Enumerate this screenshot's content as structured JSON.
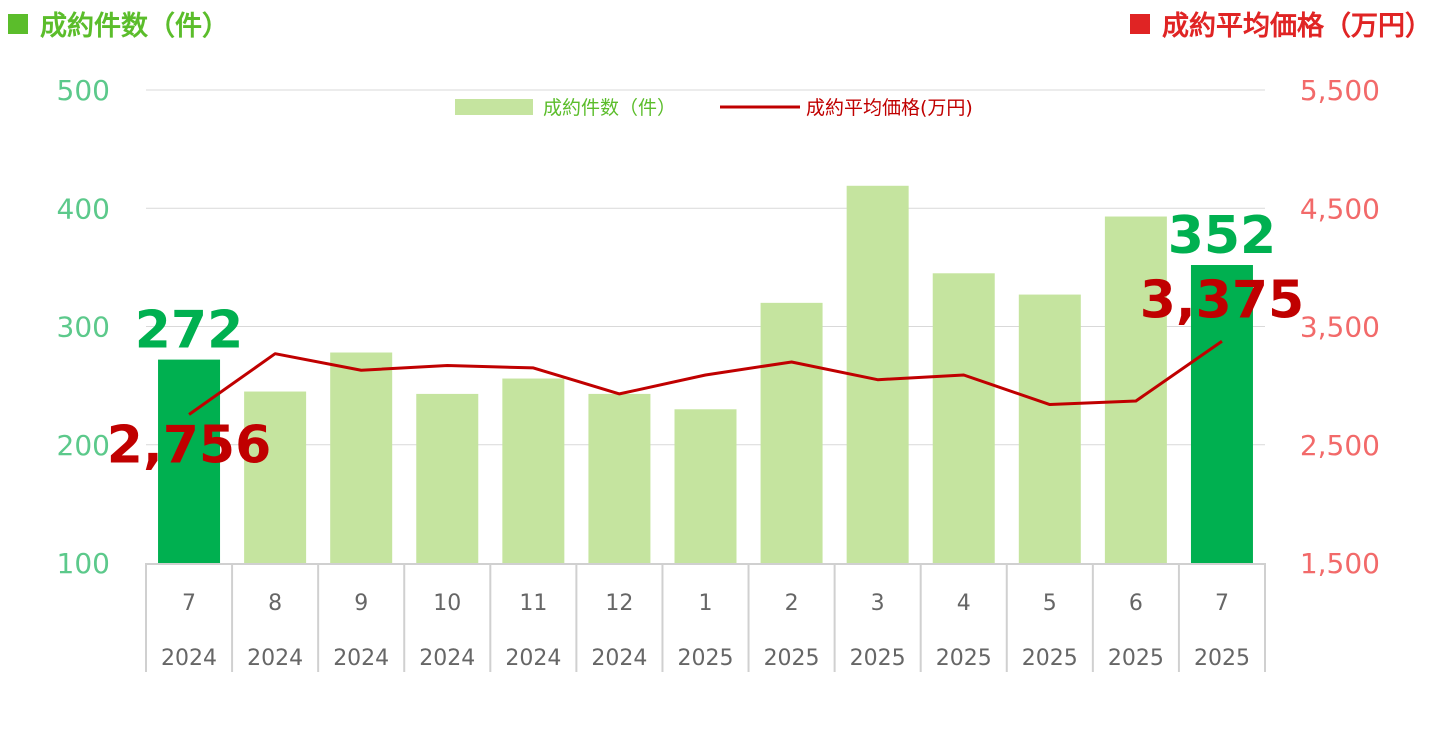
{
  "header": {
    "left_title": "成約件数（件）",
    "right_title": "成約平均価格（万円）"
  },
  "colors": {
    "bar": "#c5e49f",
    "bar_highlight": "#00b050",
    "line": "#c00000",
    "left_axis": "#5cc98b",
    "right_axis": "#f26a6a",
    "header_left": "#5bbd2b",
    "header_right": "#e02424"
  },
  "chart_data": {
    "type": "bar",
    "categories": [
      {
        "month": "7",
        "year": "2024"
      },
      {
        "month": "8",
        "year": "2024"
      },
      {
        "month": "9",
        "year": "2024"
      },
      {
        "month": "10",
        "year": "2024"
      },
      {
        "month": "11",
        "year": "2024"
      },
      {
        "month": "12",
        "year": "2024"
      },
      {
        "month": "1",
        "year": "2025"
      },
      {
        "month": "2",
        "year": "2025"
      },
      {
        "month": "3",
        "year": "2025"
      },
      {
        "month": "4",
        "year": "2025"
      },
      {
        "month": "5",
        "year": "2025"
      },
      {
        "month": "6",
        "year": "2025"
      },
      {
        "month": "7",
        "year": "2025"
      }
    ],
    "series": [
      {
        "name": "成約件数（件）",
        "type": "bar",
        "axis": "left",
        "values": [
          272,
          245,
          278,
          243,
          256,
          243,
          230,
          320,
          419,
          345,
          327,
          393,
          352
        ]
      },
      {
        "name": "成約平均価格(万円)",
        "type": "line",
        "axis": "right",
        "values": [
          2756,
          3270,
          3130,
          3170,
          3150,
          2930,
          3090,
          3200,
          3050,
          3090,
          2840,
          2870,
          3375
        ]
      }
    ],
    "highlight_indices": [
      0,
      12
    ],
    "data_labels": [
      {
        "index": 0,
        "count": "272",
        "price": "2,756"
      },
      {
        "index": 12,
        "count": "352",
        "price": "3,375"
      }
    ],
    "left_axis": {
      "min": 100,
      "max": 500,
      "ticks": [
        "100",
        "200",
        "300",
        "400",
        "500"
      ]
    },
    "right_axis": {
      "min": 1500,
      "max": 5500,
      "ticks": [
        "1,500",
        "2,500",
        "3,500",
        "4,500",
        "5,500"
      ]
    },
    "grid": true,
    "legend_position": "top-center"
  }
}
